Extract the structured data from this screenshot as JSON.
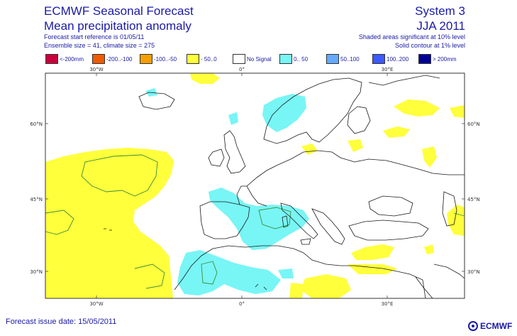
{
  "header": {
    "title_line1": "ECMWF Seasonal Forecast",
    "title_line2": "Mean precipitation anomaly",
    "sub_line1": "Forecast start reference is 01/05/11",
    "sub_line2": "Ensemble size = 41, climate size = 275",
    "system": "System 3",
    "period": "JJA 2011",
    "note_line1": "Shaded areas significant at 10% level",
    "note_line2": "Solid contour at 1% level"
  },
  "legend": {
    "items": [
      {
        "label": "<-200mm",
        "color": "#c8003c"
      },
      {
        "label": "-200..-100",
        "color": "#f05a00"
      },
      {
        "label": "-100..-50",
        "color": "#f5a000"
      },
      {
        "label": "- 50..0",
        "color": "#ffff3c"
      },
      {
        "label": "No Signal",
        "color": "#ffffff"
      },
      {
        "label": "0.. 50",
        "color": "#78f5f5"
      },
      {
        "label": "50..100",
        "color": "#64aaff"
      },
      {
        "label": "100..200",
        "color": "#3c5aff"
      },
      {
        "label": "> 200mm",
        "color": "#000096"
      }
    ]
  },
  "map": {
    "lon_ticks": [
      "30°W",
      "0°",
      "30°E"
    ],
    "lat_ticks": [
      "60°N",
      "45°N",
      "30°N"
    ],
    "colors": {
      "frame": "#333333",
      "coast": "#1a1a1a",
      "dry": "#ffff3c",
      "wet": "#78f5f5",
      "contour": "#3c8c3c"
    }
  },
  "footer": {
    "issue_date": "Forecast issue date: 15/05/2011",
    "logo_text": "ECMWF"
  }
}
